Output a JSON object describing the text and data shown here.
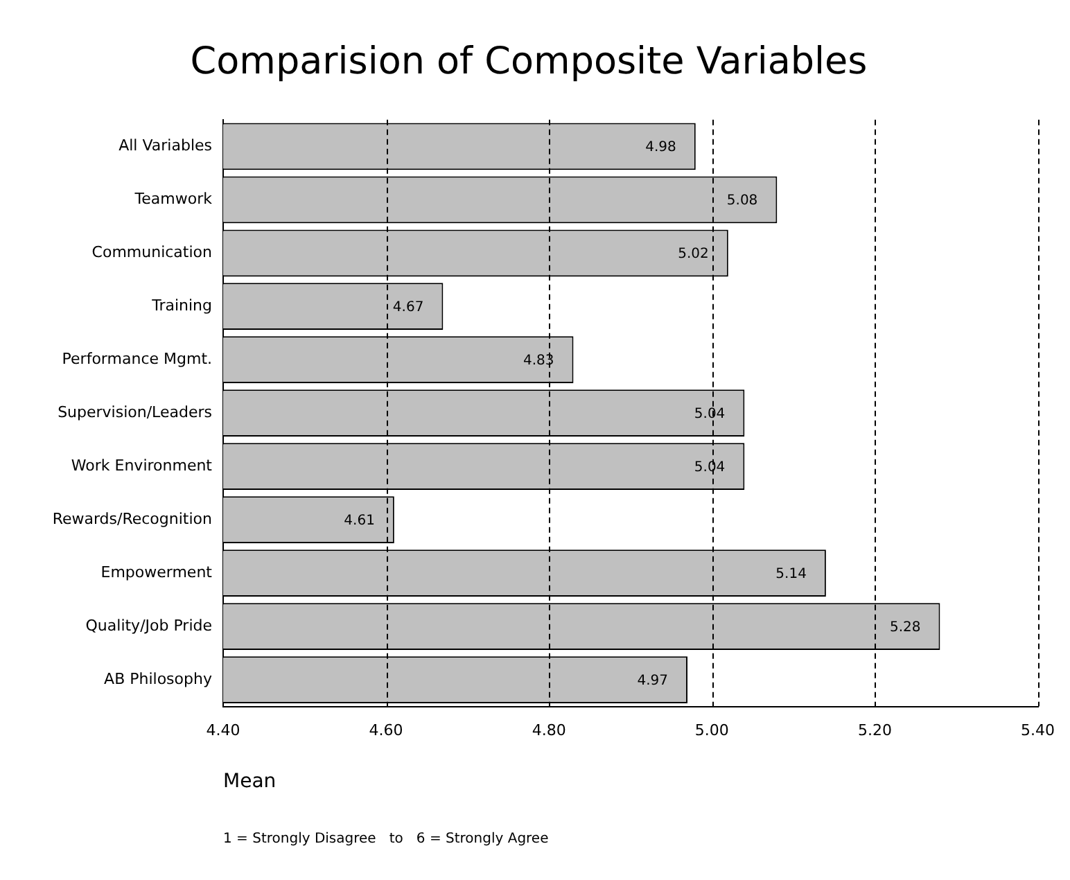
{
  "chart_data": {
    "type": "bar",
    "orientation": "horizontal",
    "title": "Comparision of Composite Variables",
    "xlabel": "Mean",
    "annotations": [
      "1 = Strongly Disagree   to   6 = Strongly Agree"
    ],
    "categories": [
      "All Variables",
      "Teamwork",
      "Communication",
      "Training",
      "Performance Mgmt.",
      "Supervision/Leaders",
      "Work Environment",
      "Rewards/Recognition",
      "Empowerment",
      "Quality/Job Pride",
      "AB Philosophy"
    ],
    "values": [
      4.98,
      5.08,
      5.02,
      4.67,
      4.83,
      5.04,
      5.04,
      4.61,
      5.14,
      5.28,
      4.97
    ],
    "color": "#c0c0c0",
    "xlim": [
      4.4,
      5.4
    ],
    "xticks": [
      {
        "value": 4.4,
        "label": "4.40"
      },
      {
        "value": 4.6,
        "label": "4.60"
      },
      {
        "value": 4.8,
        "label": "4.80"
      },
      {
        "value": 5.0,
        "label": "5.00"
      },
      {
        "value": 5.2,
        "label": "5.20"
      },
      {
        "value": 5.4,
        "label": "5.40"
      }
    ],
    "grid": "x",
    "data_labels": true,
    "legend": false
  }
}
